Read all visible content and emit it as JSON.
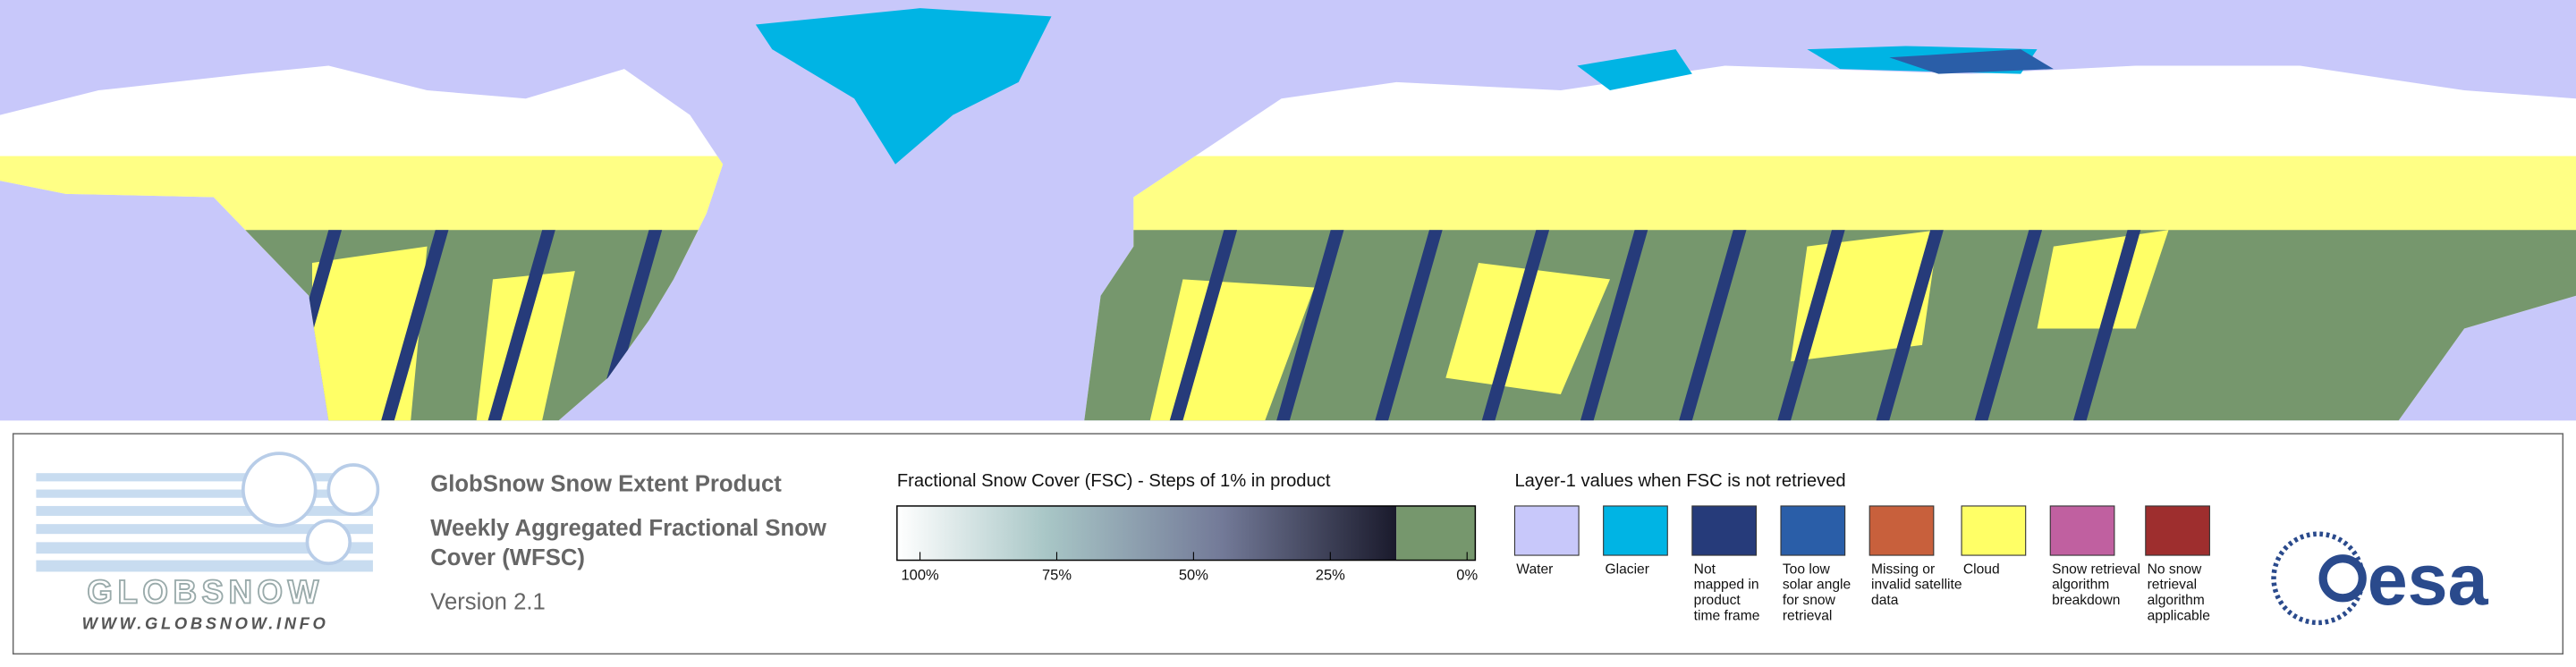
{
  "logo": {
    "name": "GLOBSNOW",
    "url": "WWW.GLOBSNOW.INFO"
  },
  "product": {
    "title": "GlobSnow Snow Extent Product",
    "subtitle_lines": [
      "Weekly Aggregated Fractional Snow",
      "Cover (WFSC)"
    ],
    "version": "Version 2.1"
  },
  "fsc_scale": {
    "title": "Fractional Snow Cover (FSC) - Steps of 1% in product",
    "tick_labels": [
      "100%",
      "75%",
      "50%",
      "25%",
      "0%"
    ]
  },
  "layer1": {
    "title": "Layer-1 values when FSC is not retrieved",
    "items": [
      {
        "color": "#c8c8fa",
        "lines": [
          "Water"
        ]
      },
      {
        "color": "#00b4e4",
        "lines": [
          "Glacier"
        ]
      },
      {
        "color": "#263b7a",
        "lines": [
          "Not",
          "mapped in",
          "product",
          "time frame"
        ]
      },
      {
        "color": "#2a5ea8",
        "lines": [
          "Too low",
          "solar angle",
          "for snow",
          "retrieval"
        ]
      },
      {
        "color": "#c8603c",
        "lines": [
          "Missing or",
          "invalid satellite",
          "data"
        ]
      },
      {
        "color": "#ffff66",
        "lines": [
          "Cloud"
        ]
      },
      {
        "color": "#c060a0",
        "lines": [
          "Snow retrieval",
          "algorithm",
          "breakdown"
        ]
      },
      {
        "color": "#9e2e2e",
        "lines": [
          "No snow",
          "retrieval",
          "algorithm",
          "applicable"
        ]
      }
    ]
  },
  "esa_logo": "esa"
}
